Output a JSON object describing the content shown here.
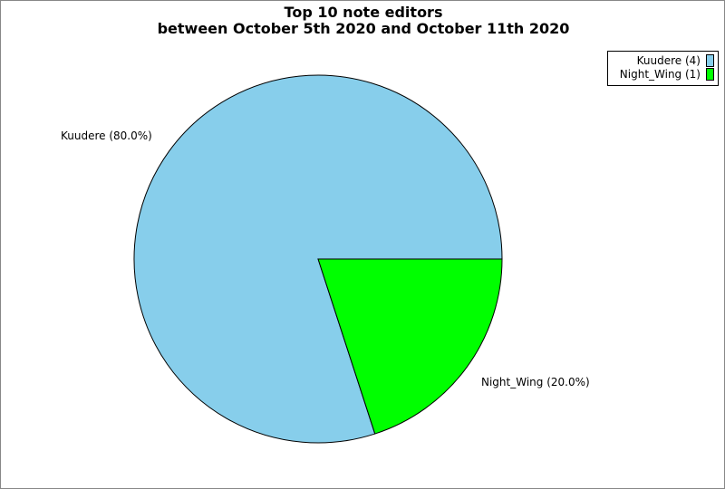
{
  "chart_data": {
    "type": "pie",
    "title": "Top 10 note editors",
    "subtitle": "between October 5th 2020 and October 11th 2020",
    "slices": [
      {
        "name": "Kuudere",
        "value": 4,
        "percent_label": "Kuudere (80.0%)",
        "legend_label": "Kuudere (4)",
        "color": "#87ceeb"
      },
      {
        "name": "Night_Wing",
        "value": 1,
        "percent_label": "Night_Wing (20.0%)",
        "legend_label": "Night_Wing (1)",
        "color": "#00ff00"
      }
    ],
    "legend_position": "top-right"
  }
}
